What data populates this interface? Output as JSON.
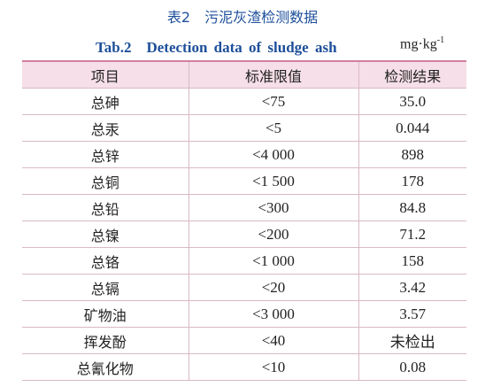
{
  "header": {
    "title": "表2　污泥灰渣检测数据",
    "subtitle": "Tab.2　Detection data of sludge ash",
    "unit_base": "mg·kg",
    "unit_exponent": "-1"
  },
  "table": {
    "columns": [
      "项目",
      "标准限值",
      "检测结果"
    ],
    "rows": [
      [
        "总砷",
        "<75",
        "35.0"
      ],
      [
        "总汞",
        "<5",
        "0.044"
      ],
      [
        "总锌",
        "<4 000",
        "898"
      ],
      [
        "总铜",
        "<1 500",
        "178"
      ],
      [
        "总铅",
        "<300",
        "84.8"
      ],
      [
        "总镍",
        "<200",
        "71.2"
      ],
      [
        "总铬",
        "<1 000",
        "158"
      ],
      [
        "总镉",
        "<20",
        "3.42"
      ],
      [
        "矿物油",
        "<3 000",
        "3.57"
      ],
      [
        "挥发酚",
        "<40",
        "未检出"
      ],
      [
        "总氰化物",
        "<10",
        "0.08"
      ]
    ]
  }
}
